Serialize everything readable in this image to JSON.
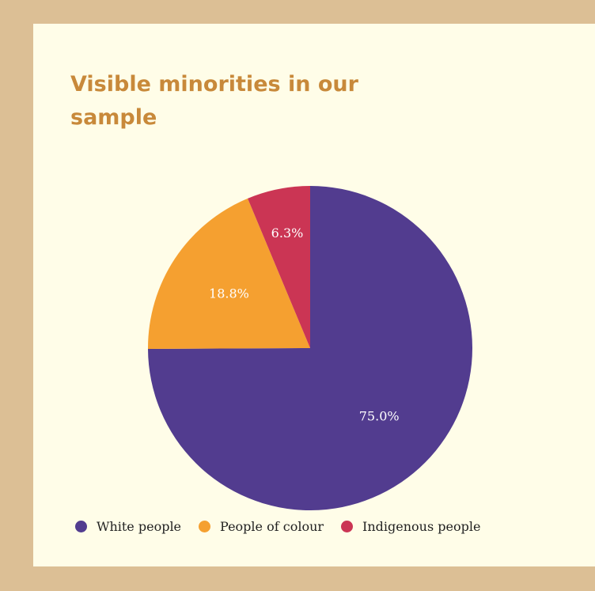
{
  "chart_data": {
    "type": "pie",
    "title": "Visible minorities in our sample",
    "slices": [
      {
        "label": "White people",
        "value": 75.0,
        "value_label": "75.0%",
        "color": "#523c8f"
      },
      {
        "label": "People of colour",
        "value": 18.8,
        "value_label": "18.8%",
        "color": "#f5a030"
      },
      {
        "label": "Indigenous people",
        "value": 6.3,
        "value_label": "6.3%",
        "color": "#cb3554"
      }
    ],
    "start": "top",
    "direction": "clockwise",
    "legend_position": "bottom"
  },
  "colors": {
    "frame": "#dcbf95",
    "card": "#fffde8",
    "title": "#c8893a"
  }
}
